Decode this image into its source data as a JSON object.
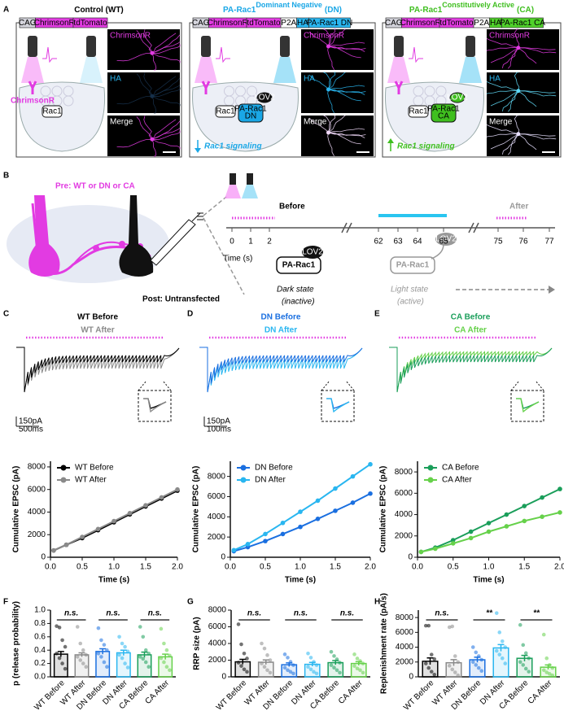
{
  "panel_a": {
    "label": "A",
    "columns": [
      {
        "title": "Control (WT)",
        "color": "#000000",
        "construct": [
          {
            "text": "CAG",
            "color": "#d4d4dc"
          },
          {
            "text": "ChrimsonR",
            "color": "#e23be2"
          },
          {
            "text": "tdTomato",
            "color": "#e23be2"
          }
        ],
        "image_labels": [
          "ChrimsonR",
          "HA",
          "Merge"
        ],
        "receptor_label": "ChrimsonR",
        "rac1_label": "Rac1"
      },
      {
        "title": "PA-Rac1",
        "title_sup": "Dominant Negative",
        "title_suffix": "(DN)",
        "color": "#1aa7e6",
        "construct": [
          {
            "text": "CAG",
            "color": "#d4d4dc"
          },
          {
            "text": "ChrimsonR",
            "color": "#e23be2"
          },
          {
            "text": "tdTomato",
            "color": "#e23be2"
          },
          {
            "text": "P2A",
            "color": "#ffffff"
          },
          {
            "text": "HA",
            "color": "#29b6f0"
          },
          {
            "text": "PA-Rac1 DN",
            "color": "#29b6f0"
          }
        ],
        "image_labels": [
          "ChrimsonR",
          "HA",
          "Merge"
        ],
        "rac1_label": "Rac1",
        "pa_rac1_label": [
          "PA-Rac1",
          "DN"
        ],
        "lov2_label": "LOV2",
        "signaling": "Rac1 signaling"
      },
      {
        "title": "PA-Rac1",
        "title_sup": "Constitutively Active",
        "title_suffix": "(CA)",
        "color": "#3fbf1f",
        "construct": [
          {
            "text": "CAG",
            "color": "#d4d4dc"
          },
          {
            "text": "ChrimsonR",
            "color": "#e23be2"
          },
          {
            "text": "tdTomato",
            "color": "#e23be2"
          },
          {
            "text": "P2A",
            "color": "#ffffff"
          },
          {
            "text": "HA",
            "color": "#4fd12a"
          },
          {
            "text": "PA-Rac1 CA",
            "color": "#4fd12a"
          }
        ],
        "image_labels": [
          "ChrimsonR",
          "HA",
          "Merge"
        ],
        "rac1_label": "Rac1",
        "pa_rac1_label": [
          "PA-Rac1",
          "CA"
        ],
        "lov2_label": "LOV2",
        "signaling": "Rac1 signaling"
      }
    ]
  },
  "panel_b": {
    "label": "B",
    "pre": "Pre: WT or DN or CA",
    "post": "Post: Untransfected",
    "time_label": "Time (s)",
    "time_ticks": [
      0,
      1,
      2,
      62,
      63,
      64,
      65,
      75,
      76,
      77
    ],
    "before": "Before",
    "after": "After",
    "dark": {
      "protein": "PA-Rac1",
      "domain": "LOV2",
      "state": "Dark state",
      "note": "(inactive)"
    },
    "light": {
      "protein": "PA-Rac1",
      "domain": "LOV2",
      "state": "Light state",
      "note": "(active)"
    }
  },
  "chart_data": [
    {
      "type": "line",
      "panel": "C",
      "x": [
        0.05,
        0.25,
        0.5,
        0.75,
        1.0,
        1.25,
        1.5,
        1.75,
        2.0
      ],
      "xlim": [
        0,
        2.0
      ],
      "xticks": [
        {
          "value": 0,
          "label": "0.0"
        },
        {
          "value": 0.5,
          "label": "0.5"
        },
        {
          "value": 1.0,
          "label": "1.0"
        },
        {
          "value": 1.5,
          "label": "1.5"
        },
        {
          "value": 2.0,
          "label": "2.0"
        }
      ],
      "ylim": [
        0,
        8500
      ],
      "yticks": [
        0,
        2000,
        4000,
        6000,
        8000
      ],
      "xlabel": "Time (s)",
      "ylabel": "Cumulative EPSC (pA)",
      "scale_bar_labels": [
        "150pA",
        "500ms"
      ],
      "series": [
        {
          "name": "WT Before",
          "color": "#000000",
          "values": [
            600,
            1100,
            1700,
            2400,
            3100,
            3800,
            4500,
            5200,
            5900
          ]
        },
        {
          "name": "WT After",
          "color": "#8a8a8a",
          "values": [
            600,
            1100,
            1800,
            2500,
            3200,
            3900,
            4600,
            5300,
            6000
          ]
        }
      ]
    },
    {
      "type": "line",
      "panel": "D",
      "x": [
        0.05,
        0.25,
        0.5,
        0.75,
        1.0,
        1.25,
        1.5,
        1.75,
        2.0
      ],
      "xlim": [
        0,
        2.0
      ],
      "xticks": [
        {
          "value": 0,
          "label": "0.0"
        },
        {
          "value": 0.5,
          "label": "0.5"
        },
        {
          "value": 1.0,
          "label": "1.0"
        },
        {
          "value": 1.5,
          "label": "1.5"
        },
        {
          "value": 2.0,
          "label": "2.0"
        }
      ],
      "ylim": [
        0,
        9500
      ],
      "yticks": [
        0,
        2000,
        4000,
        6000,
        8000
      ],
      "xlabel": "Time (s)",
      "ylabel": "Cumulative EPSC (pA)",
      "scale_bar_labels": [
        "150pA",
        "100ms"
      ],
      "series": [
        {
          "name": "DN Before",
          "color": "#1a6fe0",
          "values": [
            600,
            1000,
            1600,
            2300,
            3000,
            3800,
            4600,
            5400,
            6300
          ]
        },
        {
          "name": "DN After",
          "color": "#29b6f0",
          "values": [
            700,
            1300,
            2300,
            3400,
            4500,
            5600,
            6800,
            8000,
            9200
          ]
        }
      ]
    },
    {
      "type": "line",
      "panel": "E",
      "x": [
        0.05,
        0.25,
        0.5,
        0.75,
        1.0,
        1.25,
        1.5,
        1.75,
        2.0
      ],
      "xlim": [
        0,
        2.0
      ],
      "xticks": [
        {
          "value": 0,
          "label": "0.0"
        },
        {
          "value": 0.5,
          "label": "0.5"
        },
        {
          "value": 1.0,
          "label": "1.0"
        },
        {
          "value": 1.5,
          "label": "1.5"
        },
        {
          "value": 2.0,
          "label": "2.0"
        }
      ],
      "ylim": [
        0,
        9000
      ],
      "yticks": [
        0,
        2000,
        4000,
        6000,
        8000
      ],
      "xlabel": "Time (s)",
      "ylabel": "Cumulative EPSC (pA)",
      "series": [
        {
          "name": "CA Before",
          "color": "#1a9e5a",
          "values": [
            500,
            900,
            1600,
            2400,
            3200,
            4000,
            4800,
            5600,
            6400
          ]
        },
        {
          "name": "CA After",
          "color": "#66d14a",
          "values": [
            500,
            800,
            1300,
            1800,
            2400,
            2900,
            3400,
            3800,
            4200
          ]
        }
      ]
    },
    {
      "type": "bar",
      "panel": "F",
      "categories": [
        "WT Before",
        "WT After",
        "DN Before",
        "DN After",
        "CA Before",
        "CA After"
      ],
      "colors": [
        "#000000",
        "#8a8a8a",
        "#1a6fe0",
        "#29b6f0",
        "#1a9e5a",
        "#66d14a"
      ],
      "values": [
        0.34,
        0.33,
        0.38,
        0.36,
        0.33,
        0.3
      ],
      "errors": [
        0.04,
        0.03,
        0.04,
        0.04,
        0.04,
        0.04
      ],
      "points": [
        [
          0.76,
          0.74,
          0.55,
          0.45,
          0.35,
          0.28,
          0.2,
          0.12
        ],
        [
          0.75,
          0.5,
          0.4,
          0.33,
          0.3,
          0.25,
          0.2,
          0.15
        ],
        [
          0.73,
          0.55,
          0.48,
          0.4,
          0.35,
          0.3,
          0.22,
          0.15
        ],
        [
          0.6,
          0.5,
          0.45,
          0.38,
          0.33,
          0.28,
          0.2,
          0.14
        ],
        [
          0.75,
          0.6,
          0.4,
          0.35,
          0.3,
          0.27,
          0.22,
          0.15
        ],
        [
          0.72,
          0.5,
          0.4,
          0.32,
          0.28,
          0.22,
          0.15,
          0.1
        ]
      ],
      "ylim": [
        0,
        1.0
      ],
      "yticks": [
        {
          "value": 0,
          "label": "0.0"
        },
        {
          "value": 0.2,
          "label": "0.2"
        },
        {
          "value": 0.4,
          "label": "0.4"
        },
        {
          "value": 0.6,
          "label": "0.6"
        },
        {
          "value": 0.8,
          "label": "0.8"
        },
        {
          "value": 1.0,
          "label": "1.0"
        }
      ],
      "ylabel": "p (release probability)",
      "significance": [
        "n.s.",
        "n.s.",
        "n.s."
      ]
    },
    {
      "type": "bar",
      "panel": "G",
      "categories": [
        "WT Before",
        "WT After",
        "DN Before",
        "DN After",
        "CA Before",
        "CA After"
      ],
      "colors": [
        "#000000",
        "#8a8a8a",
        "#1a6fe0",
        "#29b6f0",
        "#1a9e5a",
        "#66d14a"
      ],
      "values": [
        1800,
        1750,
        1450,
        1500,
        1700,
        1600
      ],
      "errors": [
        300,
        280,
        220,
        230,
        250,
        220
      ],
      "points": [
        [
          6300,
          3900,
          2800,
          2200,
          1700,
          1300,
          900,
          600
        ],
        [
          4000,
          3400,
          2600,
          2000,
          1600,
          1200,
          800,
          500
        ],
        [
          2700,
          2300,
          1800,
          1400,
          1100,
          800,
          600,
          400
        ],
        [
          2800,
          2300,
          1800,
          1400,
          1200,
          900,
          600,
          400
        ],
        [
          3000,
          2500,
          2100,
          1700,
          1400,
          1100,
          800,
          500
        ],
        [
          2700,
          2200,
          1900,
          1600,
          1300,
          1000,
          800,
          500
        ]
      ],
      "ylim": [
        0,
        8000
      ],
      "yticks": [
        0,
        2000,
        4000,
        6000,
        8000
      ],
      "ylabel": "RRP size (pA)",
      "significance": [
        "n.s.",
        "n.s.",
        "n.s."
      ]
    },
    {
      "type": "bar",
      "panel": "H",
      "categories": [
        "WT Before",
        "WT After",
        "DN Before",
        "DN After",
        "CA Before",
        "CA After"
      ],
      "colors": [
        "#000000",
        "#8a8a8a",
        "#1a6fe0",
        "#29b6f0",
        "#1a9e5a",
        "#66d14a"
      ],
      "values": [
        2100,
        1900,
        2300,
        3900,
        2500,
        1300
      ],
      "errors": [
        450,
        420,
        350,
        450,
        400,
        300
      ],
      "points": [
        [
          6900,
          6900,
          3000,
          2400,
          1800,
          1200,
          700,
          300
        ],
        [
          6700,
          6800,
          2800,
          2000,
          1500,
          1000,
          600,
          200
        ],
        [
          4000,
          3300,
          2800,
          2300,
          2000,
          1600,
          1200,
          800
        ],
        [
          8600,
          6000,
          4800,
          4000,
          3500,
          3000,
          2500,
          1800
        ],
        [
          7000,
          4300,
          3200,
          2500,
          2000,
          1600,
          1100,
          700
        ],
        [
          5700,
          2500,
          1600,
          1200,
          900,
          600,
          400,
          200
        ]
      ],
      "ylim": [
        0,
        9000
      ],
      "yticks": [
        0,
        2000,
        4000,
        6000,
        8000
      ],
      "ylabel": "Replenishment rate (pA/s)",
      "significance": [
        "n.s.",
        "**",
        "**"
      ]
    }
  ]
}
